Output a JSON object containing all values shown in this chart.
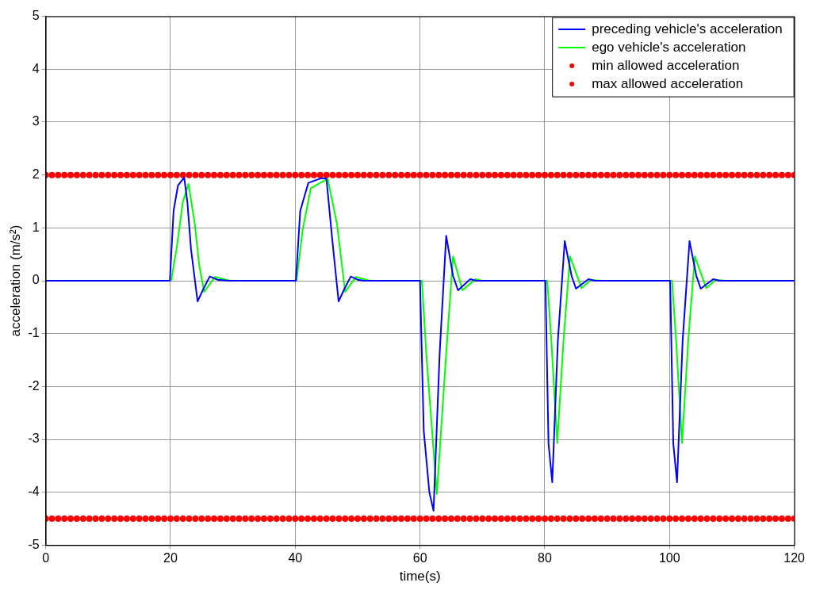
{
  "chart_data": {
    "type": "line",
    "xlabel": "time(s)",
    "ylabel": "acceleration (m/s²)",
    "xlim": [
      0,
      120
    ],
    "xticks": [
      0,
      20,
      40,
      60,
      80,
      100,
      120
    ],
    "ylim": [
      -5,
      5
    ],
    "yticks": [
      -5,
      -4,
      -3,
      -2,
      -1,
      0,
      1,
      2,
      3,
      4,
      5
    ],
    "grid": true,
    "legend": "top right",
    "series": [
      {
        "name": "preceding vehicle's acceleration",
        "color": "#0000ff",
        "line_style": "solid",
        "x": [
          0,
          19.9,
          20.5,
          21.2,
          22.2,
          22.7,
          23.3,
          24.35,
          25.3,
          26.3,
          27.5,
          29.3,
          39.9,
          40.1,
          40.8,
          42.1,
          44.2,
          45.0,
          45.9,
          46.95,
          47.9,
          48.9,
          50,
          51,
          59.9,
          60.0,
          60.6,
          61.5,
          62.17,
          63.15,
          64.2,
          65.3,
          66.1,
          68.06,
          69,
          80.0,
          80.1,
          80.6,
          81.2,
          82.1,
          83.2,
          84.3,
          85.0,
          87.0,
          88,
          100.0,
          100.1,
          100.6,
          101.2,
          102.1,
          103.2,
          104.3,
          105.0,
          107.0,
          108,
          120
        ],
        "values": [
          0,
          0,
          1.32,
          1.8,
          1.95,
          1.5,
          0.59,
          -0.39,
          -0.15,
          0.08,
          0.02,
          0,
          0,
          0,
          1.32,
          1.85,
          1.94,
          1.93,
          0.82,
          -0.39,
          -0.15,
          0.08,
          0.02,
          0,
          0,
          0,
          -2.84,
          -4.0,
          -4.35,
          -1.37,
          0.85,
          0.09,
          -0.18,
          0.03,
          0,
          0,
          0,
          -3.08,
          -3.81,
          -1.13,
          0.75,
          0.09,
          -0.15,
          0.03,
          0,
          0,
          0,
          -3.08,
          -3.81,
          -1.13,
          0.75,
          0.09,
          -0.15,
          0.03,
          0,
          0
        ]
      },
      {
        "name": "ego vehicle's acceleration",
        "color": "#00ff00",
        "line_style": "solid",
        "x": [
          0,
          20.1,
          20.95,
          22.0,
          22.9,
          23.9,
          24.6,
          25.4,
          27.1,
          29.6,
          40.2,
          41.2,
          42.5,
          45.2,
          46.7,
          48.0,
          49.7,
          52,
          60.3,
          61.0,
          62.7,
          64.2,
          65.3,
          66.8,
          68.9,
          70,
          80.4,
          81.05,
          82.0,
          83.0,
          84.05,
          85.9,
          87.4,
          89,
          100.4,
          101.05,
          102.0,
          103.0,
          104.05,
          105.9,
          107.4,
          109,
          120
        ],
        "values": [
          0,
          0,
          0.58,
          1.5,
          1.83,
          1.07,
          0.3,
          -0.21,
          0.07,
          0,
          0,
          0.97,
          1.75,
          1.93,
          1.07,
          -0.21,
          0.07,
          0,
          0,
          -1.37,
          -4.03,
          -1.37,
          0.46,
          -0.18,
          0.03,
          0,
          0,
          -1.13,
          -3.07,
          -1.13,
          0.46,
          -0.14,
          0.02,
          0,
          0,
          -1.13,
          -3.07,
          -1.13,
          0.46,
          -0.14,
          0.02,
          0,
          0
        ]
      },
      {
        "name": "min allowed acceleration",
        "type": "scatter",
        "color": "#ff0000",
        "marker": "circle",
        "x": [
          0,
          1,
          2,
          3,
          4,
          5,
          6,
          7,
          8,
          9,
          10,
          11,
          12,
          13,
          14,
          15,
          16,
          17,
          18,
          19,
          20,
          21,
          22,
          23,
          24,
          25,
          26,
          27,
          28,
          29,
          30,
          31,
          32,
          33,
          34,
          35,
          36,
          37,
          38,
          39,
          40,
          41,
          42,
          43,
          44,
          45,
          46,
          47,
          48,
          49,
          50,
          51,
          52,
          53,
          54,
          55,
          56,
          57,
          58,
          59,
          60,
          61,
          62,
          63,
          64,
          65,
          66,
          67,
          68,
          69,
          70,
          71,
          72,
          73,
          74,
          75,
          76,
          77,
          78,
          79,
          80,
          81,
          82,
          83,
          84,
          85,
          86,
          87,
          88,
          89,
          90,
          91,
          92,
          93,
          94,
          95,
          96,
          97,
          98,
          99,
          100,
          101,
          102,
          103,
          104,
          105,
          106,
          107,
          108,
          109,
          110,
          111,
          112,
          113,
          114,
          115,
          116,
          117,
          118,
          119,
          120
        ],
        "values": [
          -4.5,
          -4.5,
          -4.5,
          -4.5,
          -4.5,
          -4.5,
          -4.5,
          -4.5,
          -4.5,
          -4.5,
          -4.5,
          -4.5,
          -4.5,
          -4.5,
          -4.5,
          -4.5,
          -4.5,
          -4.5,
          -4.5,
          -4.5,
          -4.5,
          -4.5,
          -4.5,
          -4.5,
          -4.5,
          -4.5,
          -4.5,
          -4.5,
          -4.5,
          -4.5,
          -4.5,
          -4.5,
          -4.5,
          -4.5,
          -4.5,
          -4.5,
          -4.5,
          -4.5,
          -4.5,
          -4.5,
          -4.5,
          -4.5,
          -4.5,
          -4.5,
          -4.5,
          -4.5,
          -4.5,
          -4.5,
          -4.5,
          -4.5,
          -4.5,
          -4.5,
          -4.5,
          -4.5,
          -4.5,
          -4.5,
          -4.5,
          -4.5,
          -4.5,
          -4.5,
          -4.5,
          -4.5,
          -4.5,
          -4.5,
          -4.5,
          -4.5,
          -4.5,
          -4.5,
          -4.5,
          -4.5,
          -4.5,
          -4.5,
          -4.5,
          -4.5,
          -4.5,
          -4.5,
          -4.5,
          -4.5,
          -4.5,
          -4.5,
          -4.5,
          -4.5,
          -4.5,
          -4.5,
          -4.5,
          -4.5,
          -4.5,
          -4.5,
          -4.5,
          -4.5,
          -4.5,
          -4.5,
          -4.5,
          -4.5,
          -4.5,
          -4.5,
          -4.5,
          -4.5,
          -4.5,
          -4.5,
          -4.5,
          -4.5,
          -4.5,
          -4.5,
          -4.5,
          -4.5,
          -4.5,
          -4.5,
          -4.5,
          -4.5,
          -4.5,
          -4.5,
          -4.5,
          -4.5,
          -4.5,
          -4.5,
          -4.5,
          -4.5,
          -4.5,
          -4.5,
          -4.5
        ]
      },
      {
        "name": "max allowed acceleration",
        "type": "scatter",
        "color": "#ff0000",
        "marker": "circle",
        "x": [
          0,
          1,
          2,
          3,
          4,
          5,
          6,
          7,
          8,
          9,
          10,
          11,
          12,
          13,
          14,
          15,
          16,
          17,
          18,
          19,
          20,
          21,
          22,
          23,
          24,
          25,
          26,
          27,
          28,
          29,
          30,
          31,
          32,
          33,
          34,
          35,
          36,
          37,
          38,
          39,
          40,
          41,
          42,
          43,
          44,
          45,
          46,
          47,
          48,
          49,
          50,
          51,
          52,
          53,
          54,
          55,
          56,
          57,
          58,
          59,
          60,
          61,
          62,
          63,
          64,
          65,
          66,
          67,
          68,
          69,
          70,
          71,
          72,
          73,
          74,
          75,
          76,
          77,
          78,
          79,
          80,
          81,
          82,
          83,
          84,
          85,
          86,
          87,
          88,
          89,
          90,
          91,
          92,
          93,
          94,
          95,
          96,
          97,
          98,
          99,
          100,
          101,
          102,
          103,
          104,
          105,
          106,
          107,
          108,
          109,
          110,
          111,
          112,
          113,
          114,
          115,
          116,
          117,
          118,
          119,
          120
        ],
        "values": [
          2,
          2,
          2,
          2,
          2,
          2,
          2,
          2,
          2,
          2,
          2,
          2,
          2,
          2,
          2,
          2,
          2,
          2,
          2,
          2,
          2,
          2,
          2,
          2,
          2,
          2,
          2,
          2,
          2,
          2,
          2,
          2,
          2,
          2,
          2,
          2,
          2,
          2,
          2,
          2,
          2,
          2,
          2,
          2,
          2,
          2,
          2,
          2,
          2,
          2,
          2,
          2,
          2,
          2,
          2,
          2,
          2,
          2,
          2,
          2,
          2,
          2,
          2,
          2,
          2,
          2,
          2,
          2,
          2,
          2,
          2,
          2,
          2,
          2,
          2,
          2,
          2,
          2,
          2,
          2,
          2,
          2,
          2,
          2,
          2,
          2,
          2,
          2,
          2,
          2,
          2,
          2,
          2,
          2,
          2,
          2,
          2,
          2,
          2,
          2,
          2,
          2,
          2,
          2,
          2,
          2,
          2,
          2,
          2,
          2,
          2,
          2,
          2,
          2,
          2,
          2,
          2,
          2,
          2,
          2,
          2
        ]
      }
    ]
  }
}
